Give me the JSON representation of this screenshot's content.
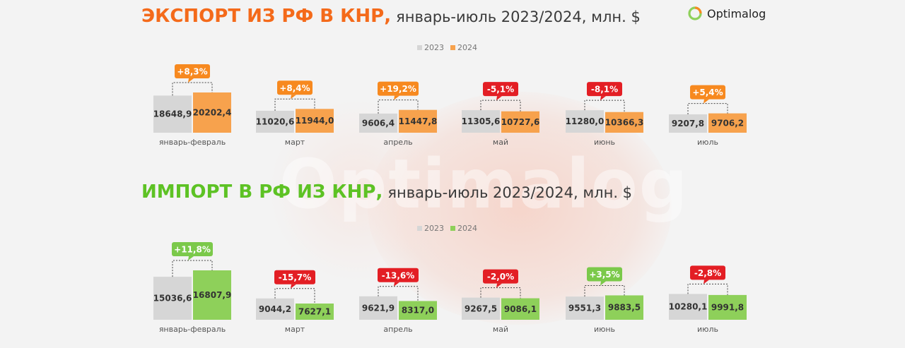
{
  "brand": {
    "name": "Optimalog"
  },
  "colors": {
    "export_2024": "#f7a24d",
    "import_2024": "#8ed05a",
    "bar_2023": "#d6d6d6",
    "export_title": "#f46a1a",
    "import_title": "#5dc224",
    "up_badge_export": "#f7891f",
    "up_badge_import": "#7bc94a",
    "down_badge": "#e31e24"
  },
  "chart_data": [
    {
      "type": "bar",
      "title_bold": "ЭКСПОРТ ИЗ РФ В КНР,",
      "title_rest": "январь-июль 2023/2024, млн. $",
      "categories": [
        "январь-февраль",
        "март",
        "апрель",
        "май",
        "июнь",
        "июль"
      ],
      "series": [
        {
          "name": "2023",
          "values": [
            "18648,9",
            "11020,6",
            "9606,4",
            "11305,6",
            "11280,0",
            "9207,8"
          ]
        },
        {
          "name": "2024",
          "values": [
            "20202,4",
            "11944,0",
            "11447,8",
            "10727,6",
            "10366,3",
            "9706,2"
          ]
        }
      ],
      "changes": [
        "+8,3%",
        "+8,4%",
        "+19,2%",
        "-5,1%",
        "-8,1%",
        "+5,4%"
      ],
      "legend": "top-center"
    },
    {
      "type": "bar",
      "title_bold": "ИМПОРТ В РФ ИЗ КНР,",
      "title_rest": "январь-июль 2023/2024, млн. $",
      "categories": [
        "январь-февраль",
        "март",
        "апрель",
        "май",
        "июнь",
        "июль"
      ],
      "series": [
        {
          "name": "2023",
          "values": [
            "15036,6",
            "9044,2",
            "9621,9",
            "9267,5",
            "9551,3",
            "10280,1"
          ]
        },
        {
          "name": "2024",
          "values": [
            "16807,9",
            "7627,1",
            "8317,0",
            "9086,1",
            "9883,5",
            "9991,8"
          ]
        }
      ],
      "changes": [
        "+11,8%",
        "-15,7%",
        "-13,6%",
        "-2,0%",
        "+3,5%",
        "-2,8%"
      ],
      "legend": "top-center"
    }
  ]
}
